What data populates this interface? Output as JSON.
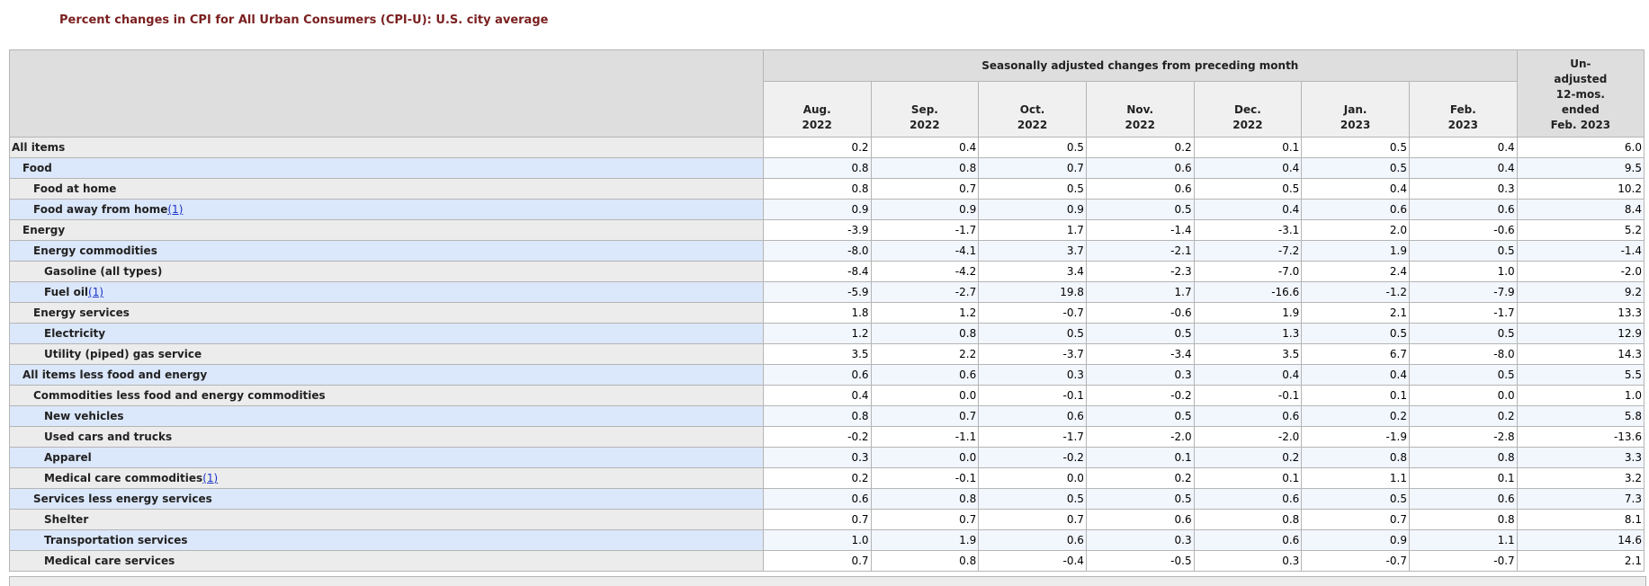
{
  "caption": "Percent changes in CPI for All Urban Consumers (CPI-U): U.S. city average",
  "header": {
    "group": "Seasonally adjusted changes from preceding month",
    "months": [
      {
        "m": "Aug.",
        "y": "2022"
      },
      {
        "m": "Sep.",
        "y": "2022"
      },
      {
        "m": "Oct.",
        "y": "2022"
      },
      {
        "m": "Nov.",
        "y": "2022"
      },
      {
        "m": "Dec.",
        "y": "2022"
      },
      {
        "m": "Jan.",
        "y": "2023"
      },
      {
        "m": "Feb.",
        "y": "2023"
      }
    ],
    "unadjusted": [
      "Un-",
      "adjusted",
      "12-mos.",
      "ended",
      "Feb. 2023"
    ]
  },
  "footnote_marker": "(1)",
  "rows": [
    {
      "label": "All items",
      "indent": 0,
      "fn": false,
      "values": [
        "0.2",
        "0.4",
        "0.5",
        "0.2",
        "0.1",
        "0.5",
        "0.4",
        "6.0"
      ]
    },
    {
      "label": "Food",
      "indent": 1,
      "fn": false,
      "values": [
        "0.8",
        "0.8",
        "0.7",
        "0.6",
        "0.4",
        "0.5",
        "0.4",
        "9.5"
      ]
    },
    {
      "label": "Food at home",
      "indent": 2,
      "fn": false,
      "values": [
        "0.8",
        "0.7",
        "0.5",
        "0.6",
        "0.5",
        "0.4",
        "0.3",
        "10.2"
      ]
    },
    {
      "label": "Food away from home",
      "indent": 2,
      "fn": true,
      "values": [
        "0.9",
        "0.9",
        "0.9",
        "0.5",
        "0.4",
        "0.6",
        "0.6",
        "8.4"
      ]
    },
    {
      "label": "Energy",
      "indent": 1,
      "fn": false,
      "values": [
        "-3.9",
        "-1.7",
        "1.7",
        "-1.4",
        "-3.1",
        "2.0",
        "-0.6",
        "5.2"
      ]
    },
    {
      "label": "Energy commodities",
      "indent": 2,
      "fn": false,
      "values": [
        "-8.0",
        "-4.1",
        "3.7",
        "-2.1",
        "-7.2",
        "1.9",
        "0.5",
        "-1.4"
      ]
    },
    {
      "label": "Gasoline (all types)",
      "indent": 3,
      "fn": false,
      "values": [
        "-8.4",
        "-4.2",
        "3.4",
        "-2.3",
        "-7.0",
        "2.4",
        "1.0",
        "-2.0"
      ]
    },
    {
      "label": "Fuel oil",
      "indent": 3,
      "fn": true,
      "values": [
        "-5.9",
        "-2.7",
        "19.8",
        "1.7",
        "-16.6",
        "-1.2",
        "-7.9",
        "9.2"
      ]
    },
    {
      "label": "Energy services",
      "indent": 2,
      "fn": false,
      "values": [
        "1.8",
        "1.2",
        "-0.7",
        "-0.6",
        "1.9",
        "2.1",
        "-1.7",
        "13.3"
      ]
    },
    {
      "label": "Electricity",
      "indent": 3,
      "fn": false,
      "values": [
        "1.2",
        "0.8",
        "0.5",
        "0.5",
        "1.3",
        "0.5",
        "0.5",
        "12.9"
      ]
    },
    {
      "label": "Utility (piped) gas service",
      "indent": 3,
      "fn": false,
      "values": [
        "3.5",
        "2.2",
        "-3.7",
        "-3.4",
        "3.5",
        "6.7",
        "-8.0",
        "14.3"
      ]
    },
    {
      "label": "All items less food and energy",
      "indent": 1,
      "fn": false,
      "values": [
        "0.6",
        "0.6",
        "0.3",
        "0.3",
        "0.4",
        "0.4",
        "0.5",
        "5.5"
      ]
    },
    {
      "label": "Commodities less food and energy commodities",
      "indent": 2,
      "fn": false,
      "values": [
        "0.4",
        "0.0",
        "-0.1",
        "-0.2",
        "-0.1",
        "0.1",
        "0.0",
        "1.0"
      ]
    },
    {
      "label": "New vehicles",
      "indent": 3,
      "fn": false,
      "values": [
        "0.8",
        "0.7",
        "0.6",
        "0.5",
        "0.6",
        "0.2",
        "0.2",
        "5.8"
      ]
    },
    {
      "label": "Used cars and trucks",
      "indent": 3,
      "fn": false,
      "values": [
        "-0.2",
        "-1.1",
        "-1.7",
        "-2.0",
        "-2.0",
        "-1.9",
        "-2.8",
        "-13.6"
      ]
    },
    {
      "label": "Apparel",
      "indent": 3,
      "fn": false,
      "values": [
        "0.3",
        "0.0",
        "-0.2",
        "0.1",
        "0.2",
        "0.8",
        "0.8",
        "3.3"
      ]
    },
    {
      "label": "Medical care commodities",
      "indent": 3,
      "fn": true,
      "values": [
        "0.2",
        "-0.1",
        "0.0",
        "0.2",
        "0.1",
        "1.1",
        "0.1",
        "3.2"
      ]
    },
    {
      "label": "Services less energy services",
      "indent": 2,
      "fn": false,
      "values": [
        "0.6",
        "0.8",
        "0.5",
        "0.5",
        "0.6",
        "0.5",
        "0.6",
        "7.3"
      ]
    },
    {
      "label": "Shelter",
      "indent": 3,
      "fn": false,
      "values": [
        "0.7",
        "0.7",
        "0.7",
        "0.6",
        "0.8",
        "0.7",
        "0.8",
        "8.1"
      ]
    },
    {
      "label": "Transportation services",
      "indent": 3,
      "fn": false,
      "values": [
        "1.0",
        "1.9",
        "0.6",
        "0.3",
        "0.6",
        "0.9",
        "1.1",
        "14.6"
      ]
    },
    {
      "label": "Medical care services",
      "indent": 3,
      "fn": false,
      "values": [
        "0.7",
        "0.8",
        "-0.4",
        "-0.5",
        "0.3",
        "-0.7",
        "-0.7",
        "2.1"
      ]
    }
  ]
}
